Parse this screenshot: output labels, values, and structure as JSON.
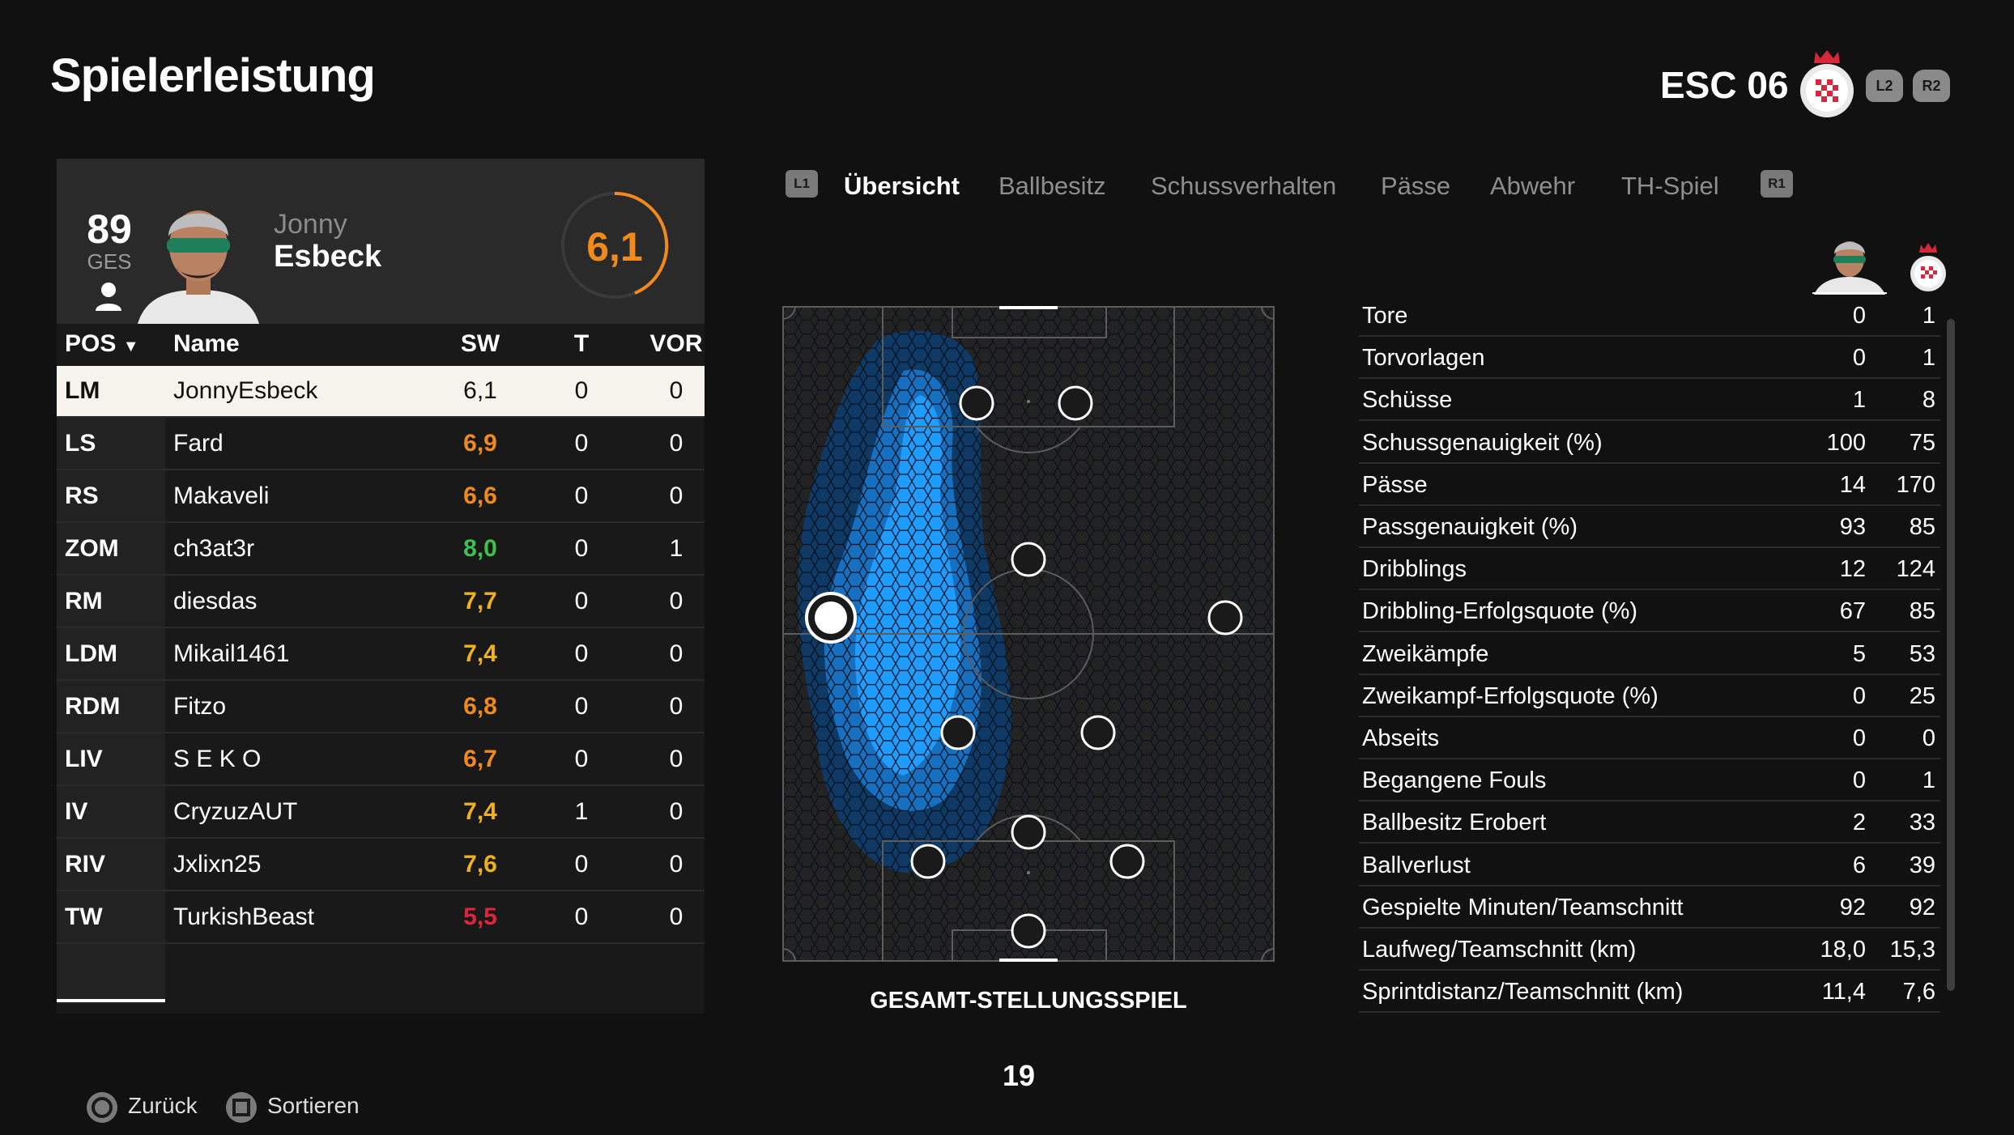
{
  "header": {
    "title": "Spielerleistung",
    "club_name": "ESC 06",
    "trigger_left": "L2",
    "trigger_right": "R2"
  },
  "player": {
    "overall": "89",
    "overall_label": "GES",
    "first_name": "Jonny",
    "last_name": "Esbeck",
    "rating": "6,1"
  },
  "table": {
    "columns": {
      "pos": "POS",
      "name": "Name",
      "sw": "SW",
      "t": "T",
      "vor": "VOR"
    },
    "sort_indicator": "▼",
    "rows": [
      {
        "pos": "LM",
        "name": "JonnyEsbeck",
        "sw": "6,1",
        "t": "0",
        "vor": "0",
        "color": "#111111"
      },
      {
        "pos": "LS",
        "name": "Fard",
        "sw": "6,9",
        "t": "0",
        "vor": "0",
        "color": "#f08a1c"
      },
      {
        "pos": "RS",
        "name": "Makaveli",
        "sw": "6,6",
        "t": "0",
        "vor": "0",
        "color": "#f08a1c"
      },
      {
        "pos": "ZOM",
        "name": "ch3at3r",
        "sw": "8,0",
        "t": "0",
        "vor": "1",
        "color": "#3cc24a"
      },
      {
        "pos": "RM",
        "name": "diesdas",
        "sw": "7,7",
        "t": "0",
        "vor": "0",
        "color": "#f0b21c"
      },
      {
        "pos": "LDM",
        "name": "Mikail1461",
        "sw": "7,4",
        "t": "0",
        "vor": "0",
        "color": "#f0b21c"
      },
      {
        "pos": "RDM",
        "name": "Fitzo",
        "sw": "6,8",
        "t": "0",
        "vor": "0",
        "color": "#f08a1c"
      },
      {
        "pos": "LIV",
        "name": "S E K O",
        "sw": "6,7",
        "t": "0",
        "vor": "0",
        "color": "#f08a1c"
      },
      {
        "pos": "IV",
        "name": "CryzuzAUT",
        "sw": "7,4",
        "t": "1",
        "vor": "0",
        "color": "#f0b21c"
      },
      {
        "pos": "RIV",
        "name": "Jxlixn25",
        "sw": "7,6",
        "t": "0",
        "vor": "0",
        "color": "#f0b21c"
      },
      {
        "pos": "TW",
        "name": "TurkishBeast",
        "sw": "5,5",
        "t": "0",
        "vor": "0",
        "color": "#e0243a"
      }
    ]
  },
  "tabs": {
    "left_btn": "L1",
    "right_btn": "R1",
    "items": [
      "Übersicht",
      "Ballbesitz",
      "Schussverhalten",
      "Pässe",
      "Abwehr",
      "TH-Spiel"
    ]
  },
  "pitch": {
    "label": "GESAMT-STELLUNGSSPIEL"
  },
  "stats": [
    {
      "label": "Tore",
      "a": "0",
      "b": "1"
    },
    {
      "label": "Torvorlagen",
      "a": "0",
      "b": "1"
    },
    {
      "label": "Schüsse",
      "a": "1",
      "b": "8"
    },
    {
      "label": "Schussgenauigkeit (%)",
      "a": "100",
      "b": "75"
    },
    {
      "label": "Pässe",
      "a": "14",
      "b": "170"
    },
    {
      "label": "Passgenauigkeit (%)",
      "a": "93",
      "b": "85"
    },
    {
      "label": "Dribblings",
      "a": "12",
      "b": "124"
    },
    {
      "label": "Dribbling-Erfolgsquote (%)",
      "a": "67",
      "b": "85"
    },
    {
      "label": "Zweikämpfe",
      "a": "5",
      "b": "53"
    },
    {
      "label": "Zweikampf-Erfolgsquote (%)",
      "a": "0",
      "b": "25"
    },
    {
      "label": "Abseits",
      "a": "0",
      "b": "0"
    },
    {
      "label": "Begangene Fouls",
      "a": "0",
      "b": "1"
    },
    {
      "label": "Ballbesitz Erobert",
      "a": "2",
      "b": "33"
    },
    {
      "label": "Ballverlust",
      "a": "6",
      "b": "39"
    },
    {
      "label": "Gespielte Minuten/Teamschnitt",
      "a": "92",
      "b": "92"
    },
    {
      "label": "Laufweg/Teamschnitt (km)",
      "a": "18,0",
      "b": "15,3"
    },
    {
      "label": "Sprintdistanz/Teamschnitt (km)",
      "a": "11,4",
      "b": "7,6"
    }
  ],
  "footer": {
    "page": "19",
    "back_label": "Zurück",
    "sort_label": "Sortieren"
  },
  "colors": {
    "accent_orange": "#f08a1c",
    "heatmap_blue": "#1e9cff"
  }
}
